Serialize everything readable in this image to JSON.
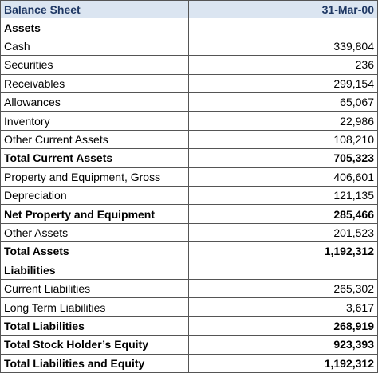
{
  "header": [
    "Balance Sheet",
    "31-Mar-00"
  ],
  "rows": [
    {
      "label": "Assets",
      "bold": true
    },
    {
      "label": "Cash",
      "value": "339,804"
    },
    {
      "label": "Securities",
      "value": "236"
    },
    {
      "label": "Receivables",
      "value": "299,154"
    },
    {
      "label": "Allowances",
      "value": "65,067"
    },
    {
      "label": "Inventory",
      "value": "22,986"
    },
    {
      "label": "Other Current Assets",
      "value": "108,210"
    },
    {
      "label": "Total Current Assets",
      "value": "705,323",
      "bold": true
    },
    {
      "label": "Property and Equipment, Gross",
      "value": "406,601"
    },
    {
      "label": "Depreciation",
      "value": "121,135"
    },
    {
      "label": "Net Property and Equipment",
      "value": "285,466",
      "bold": true
    },
    {
      "label": "Other Assets",
      "value": "201,523"
    },
    {
      "label": "Total Assets",
      "value": "1,192,312",
      "bold": true
    },
    {
      "label": "Liabilities",
      "bold": true
    },
    {
      "label": "Current Liabilities",
      "value": "265,302"
    },
    {
      "label": "Long Term Liabilities",
      "value": "3,617"
    },
    {
      "label": "Total Liabilities",
      "value": "268,919",
      "bold": true
    },
    {
      "label": "Total Stock Holder’s Equity",
      "value": "923,393",
      "bold": true
    },
    {
      "label": "Total Liabilities and Equity",
      "value": "1,192,312",
      "bold": true
    }
  ]
}
